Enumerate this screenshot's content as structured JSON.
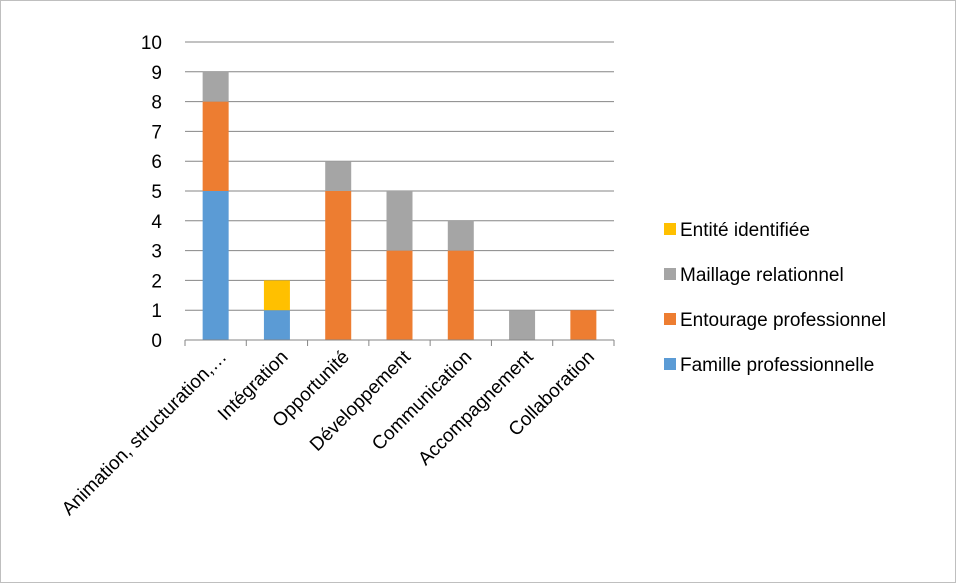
{
  "chart_data": {
    "type": "bar",
    "stacked": true,
    "categories": [
      "Animation, structuration,…",
      "Intégration",
      "Opportunité",
      "Développement",
      "Communication",
      "Accompagnement",
      "Collaboration"
    ],
    "series": [
      {
        "name": "Famille professionnelle",
        "color": "#5b9bd5",
        "values": [
          5,
          1,
          0,
          0,
          0,
          0,
          0
        ]
      },
      {
        "name": "Entourage professionnel",
        "color": "#ed7d31",
        "values": [
          3,
          0,
          5,
          3,
          3,
          0,
          1
        ]
      },
      {
        "name": "Maillage relationnel",
        "color": "#a5a5a5",
        "values": [
          1,
          0,
          1,
          2,
          1,
          1,
          0
        ]
      },
      {
        "name": "Entité identifiée",
        "color": "#ffc000",
        "values": [
          0,
          1,
          0,
          0,
          0,
          0,
          0
        ]
      }
    ],
    "ylim": [
      0,
      10
    ],
    "yticks": [
      "0",
      "1",
      "2",
      "3",
      "4",
      "5",
      "6",
      "7",
      "8",
      "9",
      "10"
    ],
    "grid": true,
    "legend_position": "right",
    "legend_order": [
      "Entité identifiée",
      "Maillage relationnel",
      "Entourage professionnel",
      "Famille professionnelle"
    ]
  }
}
